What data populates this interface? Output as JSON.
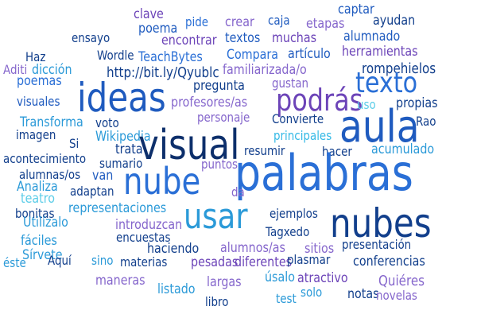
{
  "colors": {
    "navy": "#0d2f6b",
    "dark_blue": "#123f8c",
    "blue": "#1f5bbf",
    "mid_blue": "#2a6fd6",
    "sky": "#2b9ad8",
    "cyan": "#34b9e6",
    "light_cyan": "#5ccde8",
    "purple": "#6c44b8",
    "violet": "#8566cc"
  },
  "words": [
    {
      "text": "clave",
      "color": "purple"
    },
    {
      "text": "pide",
      "color": "mid_blue"
    },
    {
      "text": "crear",
      "color": "violet"
    },
    {
      "text": "caja",
      "color": "blue"
    },
    {
      "text": "etapas",
      "color": "violet"
    },
    {
      "text": "captar",
      "color": "blue"
    },
    {
      "text": "poema",
      "color": "blue"
    },
    {
      "text": "ayudan",
      "color": "dark_blue"
    },
    {
      "text": "ensayo",
      "color": "dark_blue"
    },
    {
      "text": "encontrar",
      "color": "purple"
    },
    {
      "text": "textos",
      "color": "blue"
    },
    {
      "text": "muchas",
      "color": "purple"
    },
    {
      "text": "alumnado",
      "color": "blue"
    },
    {
      "text": "Haz",
      "color": "dark_blue"
    },
    {
      "text": "Wordle",
      "color": "dark_blue"
    },
    {
      "text": "TeachBytes",
      "color": "mid_blue"
    },
    {
      "text": "Compara",
      "color": "mid_blue"
    },
    {
      "text": "artículo",
      "color": "blue"
    },
    {
      "text": "herramientas",
      "color": "purple"
    },
    {
      "text": "Aditi",
      "color": "violet"
    },
    {
      "text": "dicción",
      "color": "sky"
    },
    {
      "text": "http://bit.ly/Qyublc",
      "color": "dark_blue"
    },
    {
      "text": "familiarizada/o",
      "color": "violet"
    },
    {
      "text": "rompehielos",
      "color": "dark_blue"
    },
    {
      "text": "poemas",
      "color": "mid_blue"
    },
    {
      "text": "gustan",
      "color": "violet"
    },
    {
      "text": "ideas",
      "color": "blue"
    },
    {
      "text": "pregunta",
      "color": "dark_blue"
    },
    {
      "text": "podrás",
      "color": "purple"
    },
    {
      "text": "texto",
      "color": "mid_blue"
    },
    {
      "text": "visuales",
      "color": "blue"
    },
    {
      "text": "profesores/as",
      "color": "violet"
    },
    {
      "text": "uso",
      "color": "light_cyan"
    },
    {
      "text": "propias",
      "color": "dark_blue"
    },
    {
      "text": "Transforma",
      "color": "sky"
    },
    {
      "text": "voto",
      "color": "dark_blue"
    },
    {
      "text": "personaje",
      "color": "violet"
    },
    {
      "text": "Convierte",
      "color": "dark_blue"
    },
    {
      "text": "aula",
      "color": "blue"
    },
    {
      "text": "Rao",
      "color": "dark_blue"
    },
    {
      "text": "imagen",
      "color": "dark_blue"
    },
    {
      "text": "Wikipedia",
      "color": "sky"
    },
    {
      "text": "visual",
      "color": "navy"
    },
    {
      "text": "principales",
      "color": "cyan"
    },
    {
      "text": "Si",
      "color": "dark_blue"
    },
    {
      "text": "trata",
      "color": "dark_blue"
    },
    {
      "text": "resumir",
      "color": "dark_blue"
    },
    {
      "text": "hacer",
      "color": "dark_blue"
    },
    {
      "text": "acumulado",
      "color": "sky"
    },
    {
      "text": "acontecimiento",
      "color": "dark_blue"
    },
    {
      "text": "sumario",
      "color": "dark_blue"
    },
    {
      "text": "alumnas/os",
      "color": "dark_blue"
    },
    {
      "text": "puntos",
      "color": "violet"
    },
    {
      "text": "van",
      "color": "blue"
    },
    {
      "text": "Analiza",
      "color": "sky"
    },
    {
      "text": "nube",
      "color": "mid_blue"
    },
    {
      "text": "palabras",
      "color": "mid_blue"
    },
    {
      "text": "teatro",
      "color": "light_cyan"
    },
    {
      "text": "adaptan",
      "color": "dark_blue"
    },
    {
      "text": "da",
      "color": "violet"
    },
    {
      "text": "bonitas",
      "color": "dark_blue"
    },
    {
      "text": "representaciones",
      "color": "sky"
    },
    {
      "text": "ejemplos",
      "color": "dark_blue"
    },
    {
      "text": "usar",
      "color": "sky"
    },
    {
      "text": "nubes",
      "color": "dark_blue"
    },
    {
      "text": "Utilízalo",
      "color": "sky"
    },
    {
      "text": "introduzcan",
      "color": "violet"
    },
    {
      "text": "fáciles",
      "color": "sky"
    },
    {
      "text": "encuestas",
      "color": "dark_blue"
    },
    {
      "text": "Tagxedo",
      "color": "dark_blue"
    },
    {
      "text": "Sírvete",
      "color": "sky"
    },
    {
      "text": "sitios",
      "color": "violet"
    },
    {
      "text": "presentación",
      "color": "dark_blue"
    },
    {
      "text": "haciendo",
      "color": "dark_blue"
    },
    {
      "text": "alumnos/as",
      "color": "violet"
    },
    {
      "text": "éste",
      "color": "sky"
    },
    {
      "text": "Aquí",
      "color": "dark_blue"
    },
    {
      "text": "sino",
      "color": "sky"
    },
    {
      "text": "materias",
      "color": "dark_blue"
    },
    {
      "text": "pesadas",
      "color": "purple"
    },
    {
      "text": "diferentes",
      "color": "purple"
    },
    {
      "text": "plasmar",
      "color": "dark_blue"
    },
    {
      "text": "conferencias",
      "color": "dark_blue"
    },
    {
      "text": "maneras",
      "color": "violet"
    },
    {
      "text": "listado",
      "color": "sky"
    },
    {
      "text": "largas",
      "color": "violet"
    },
    {
      "text": "úsalo",
      "color": "sky"
    },
    {
      "text": "atractivo",
      "color": "purple"
    },
    {
      "text": "Quiéres",
      "color": "violet"
    },
    {
      "text": "libro",
      "color": "dark_blue"
    },
    {
      "text": "test",
      "color": "sky"
    },
    {
      "text": "solo",
      "color": "sky"
    },
    {
      "text": "notas",
      "color": "dark_blue"
    },
    {
      "text": "novelas",
      "color": "violet"
    }
  ]
}
